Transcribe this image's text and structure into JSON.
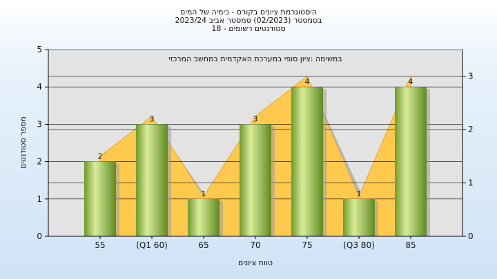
{
  "chart_data": {
    "type": "bar",
    "title_lines": [
      "היסטוגרמת ציונים בקורס - כימיה של המים",
      "בסמסטר  (02/2023)  סמסטר אביב 2023/24",
      "סטודנטים רשומים - 18"
    ],
    "subtitle": "במשימה :ציון סופי במערכת האקדמית במחשב המרכזי",
    "xlabel": "טווח ציונים",
    "ylabel": "מספר סטודנטים",
    "categories": [
      "55",
      "(Q1 60)",
      "65",
      "70",
      "75",
      "(Q3 80)",
      "85"
    ],
    "values": [
      2,
      3,
      1,
      3,
      4,
      1,
      4
    ],
    "ylim": [
      0,
      5
    ],
    "yticks": [
      0,
      1,
      2,
      3,
      4,
      5
    ],
    "y2lim": [
      0,
      3.5
    ],
    "y2ticks": [
      0,
      1,
      2,
      3
    ],
    "grid": true,
    "colors": {
      "bar_light": "#d8ec9a",
      "bar_dark": "#5e8a20",
      "area": "#ffc94d",
      "area_edge": "#e3a83a",
      "shadow": "#b5b5b5",
      "plot_bg": "#e3e3e3"
    }
  }
}
